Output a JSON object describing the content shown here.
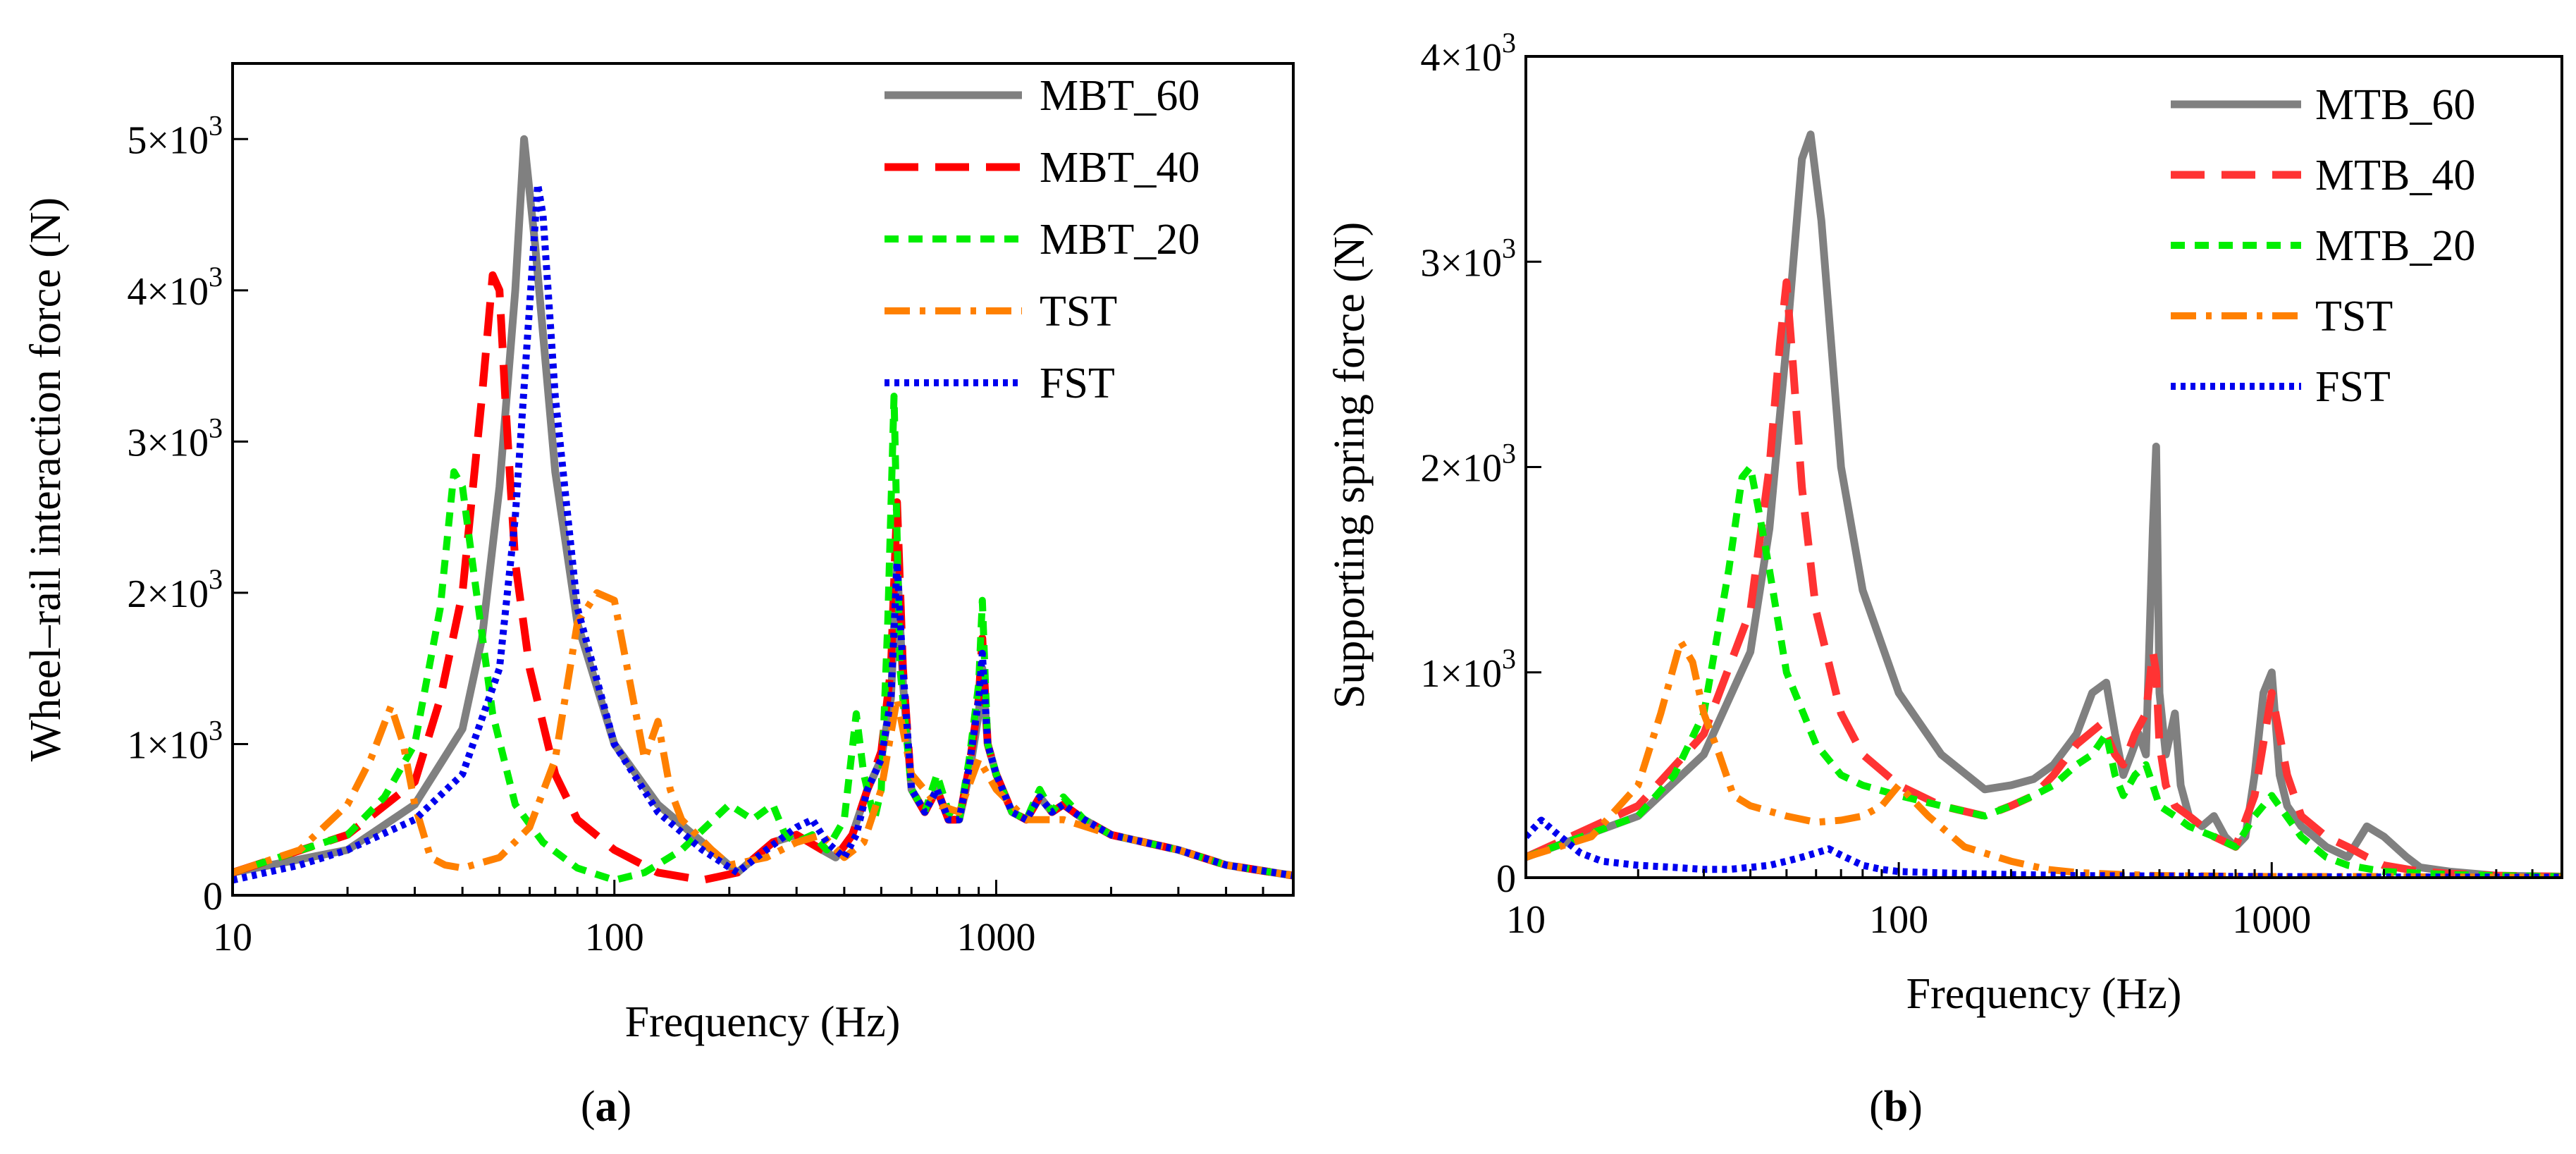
{
  "chart_data": [
    {
      "type": "line",
      "panel_label": "a",
      "xlabel": "Frequency (Hz)",
      "ylabel": "Wheel–rail interaction force (N)",
      "xscale": "log",
      "xlim": [
        10,
        6000
      ],
      "ylim": [
        0,
        5500
      ],
      "xticks": [
        {
          "value": 10,
          "label": "10"
        },
        {
          "value": 100,
          "label": "100"
        },
        {
          "value": 1000,
          "label": "1000"
        }
      ],
      "yticks": [
        {
          "value": 0,
          "label": "0"
        },
        {
          "value": 1000,
          "label": "1×10",
          "exp": "3"
        },
        {
          "value": 2000,
          "label": "2×10",
          "exp": "3"
        },
        {
          "value": 3000,
          "label": "3×10",
          "exp": "3"
        },
        {
          "value": 4000,
          "label": "4×10",
          "exp": "3"
        },
        {
          "value": 5000,
          "label": "5×10",
          "exp": "3"
        }
      ],
      "legend_position": "top-right",
      "series": [
        {
          "name": "MBT_60",
          "color": "#808080",
          "style": "solid",
          "x": [
            10,
            20,
            30,
            40,
            45,
            50,
            55,
            58,
            62,
            70,
            80,
            100,
            130,
            170,
            210,
            260,
            300,
            350,
            380,
            420,
            460,
            500,
            530,
            550,
            570,
            600,
            650,
            700,
            750,
            800,
            850,
            900,
            920,
            950,
            1000,
            1100,
            1200,
            1300,
            1400,
            1500,
            1700,
            2000,
            3000,
            4000,
            6000
          ],
          "y": [
            150,
            300,
            600,
            1100,
            1700,
            2700,
            4000,
            5000,
            4300,
            2800,
            1800,
            1000,
            600,
            350,
            150,
            350,
            400,
            300,
            250,
            400,
            700,
            900,
            1300,
            2200,
            1400,
            700,
            550,
            700,
            500,
            500,
            800,
            1200,
            1500,
            1000,
            800,
            550,
            500,
            650,
            550,
            600,
            500,
            400,
            300,
            200,
            130
          ]
        },
        {
          "name": "MBT_40",
          "color": "#ff0000",
          "style": "dash",
          "x": [
            10,
            20,
            30,
            35,
            40,
            45,
            48,
            50,
            52,
            55,
            60,
            70,
            80,
            100,
            130,
            170,
            210,
            260,
            300,
            350,
            380,
            420,
            460,
            500,
            530,
            550,
            570,
            600,
            650,
            700,
            750,
            800,
            850,
            900,
            920,
            950,
            1000,
            1100,
            1200,
            1300,
            1400,
            1500,
            1700,
            2000,
            3000,
            4000,
            6000
          ],
          "y": [
            150,
            400,
            750,
            1300,
            2000,
            3300,
            4100,
            4000,
            3200,
            2200,
            1500,
            800,
            500,
            300,
            150,
            100,
            150,
            350,
            400,
            300,
            250,
            400,
            700,
            950,
            1500,
            2600,
            1500,
            700,
            550,
            700,
            500,
            500,
            850,
            1300,
            1700,
            1000,
            800,
            550,
            500,
            650,
            550,
            600,
            500,
            400,
            300,
            200,
            130
          ]
        },
        {
          "name": "MBT_20",
          "color": "#00ee00",
          "style": "short-dash",
          "x": [
            10,
            20,
            25,
            30,
            35,
            38,
            40,
            43,
            48,
            55,
            65,
            80,
            100,
            120,
            150,
            200,
            230,
            260,
            280,
            300,
            330,
            360,
            400,
            430,
            450,
            480,
            500,
            520,
            540,
            560,
            600,
            650,
            700,
            750,
            800,
            850,
            900,
            920,
            950,
            1000,
            1100,
            1200,
            1300,
            1400,
            1500,
            1700,
            2000,
            3000,
            4000,
            6000
          ],
          "y": [
            150,
            400,
            650,
            1000,
            1900,
            2800,
            2700,
            2100,
            1200,
            600,
            350,
            180,
            100,
            150,
            300,
            600,
            500,
            600,
            400,
            350,
            400,
            300,
            500,
            1200,
            800,
            500,
            700,
            1800,
            3300,
            1500,
            700,
            550,
            800,
            550,
            500,
            900,
            1400,
            1950,
            1000,
            800,
            550,
            500,
            700,
            550,
            650,
            500,
            400,
            300,
            200,
            130
          ]
        },
        {
          "name": "TST",
          "color": "#ff8000",
          "style": "dash-dot",
          "x": [
            10,
            15,
            20,
            23,
            26,
            28,
            30,
            33,
            36,
            40,
            50,
            60,
            70,
            80,
            90,
            100,
            110,
            120,
            130,
            140,
            150,
            180,
            200,
            250,
            300,
            350,
            400,
            450,
            500,
            550,
            600,
            700,
            800,
            900,
            1000,
            1200,
            1500,
            2000,
            3000,
            4000,
            6000
          ],
          "y": [
            150,
            300,
            600,
            900,
            1250,
            1000,
            600,
            250,
            200,
            180,
            250,
            450,
            900,
            1800,
            2000,
            1950,
            1400,
            900,
            1150,
            700,
            500,
            300,
            200,
            250,
            350,
            400,
            250,
            350,
            700,
            1300,
            800,
            600,
            550,
            900,
            700,
            500,
            500,
            400,
            300,
            200,
            130
          ]
        },
        {
          "name": "FST",
          "color": "#0000ee",
          "style": "dot",
          "x": [
            10,
            15,
            20,
            30,
            40,
            50,
            55,
            60,
            63,
            65,
            70,
            80,
            100,
            130,
            170,
            210,
            250,
            300,
            330,
            360,
            400,
            430,
            460,
            500,
            530,
            550,
            570,
            600,
            650,
            700,
            750,
            800,
            850,
            900,
            920,
            950,
            1000,
            1100,
            1200,
            1300,
            1400,
            1500,
            1700,
            2000,
            3000,
            4000,
            6000
          ],
          "y": [
            100,
            200,
            300,
            500,
            800,
            1500,
            2500,
            3900,
            4700,
            4500,
            3300,
            1900,
            1000,
            550,
            300,
            150,
            300,
            450,
            500,
            350,
            250,
            400,
            700,
            900,
            1300,
            2200,
            1500,
            700,
            550,
            700,
            500,
            500,
            850,
            1300,
            1600,
            1000,
            800,
            550,
            500,
            650,
            550,
            600,
            500,
            400,
            300,
            200,
            130
          ]
        }
      ]
    },
    {
      "type": "line",
      "panel_label": "b",
      "xlabel": "Frequency (Hz)",
      "ylabel": "Supporting spring force (N)",
      "xscale": "log",
      "xlim": [
        10,
        6000
      ],
      "ylim": [
        0,
        4000
      ],
      "xticks": [
        {
          "value": 10,
          "label": "10"
        },
        {
          "value": 100,
          "label": "100"
        },
        {
          "value": 1000,
          "label": "1000"
        }
      ],
      "yticks": [
        {
          "value": 0,
          "label": "0"
        },
        {
          "value": 1000,
          "label": "1×10",
          "exp": "3"
        },
        {
          "value": 2000,
          "label": "2×10",
          "exp": "3"
        },
        {
          "value": 3000,
          "label": "3×10",
          "exp": "3"
        },
        {
          "value": 4000,
          "label": "4×10",
          "exp": "3"
        }
      ],
      "legend_position": "top-right",
      "series": [
        {
          "name": "MTB_60",
          "color": "#808080",
          "style": "solid",
          "x": [
            10,
            20,
            30,
            40,
            45,
            50,
            55,
            58,
            62,
            70,
            80,
            100,
            130,
            170,
            200,
            230,
            260,
            300,
            330,
            360,
            380,
            400,
            420,
            440,
            460,
            480,
            490,
            500,
            520,
            550,
            570,
            600,
            650,
            700,
            750,
            800,
            850,
            900,
            950,
            1000,
            1020,
            1050,
            1100,
            1200,
            1300,
            1400,
            1600,
            1800,
            2000,
            2300,
            2500,
            3000,
            4000,
            6000
          ],
          "y": [
            100,
            300,
            600,
            1100,
            1700,
            2600,
            3500,
            3620,
            3200,
            2000,
            1400,
            900,
            600,
            430,
            450,
            480,
            550,
            700,
            900,
            950,
            700,
            500,
            600,
            700,
            600,
            1700,
            2100,
            900,
            600,
            800,
            450,
            300,
            250,
            300,
            200,
            150,
            200,
            500,
            900,
            1000,
            800,
            500,
            350,
            250,
            200,
            150,
            100,
            250,
            200,
            100,
            50,
            30,
            10,
            5
          ]
        },
        {
          "name": "MTB_40",
          "color": "#ff3333",
          "style": "dash",
          "x": [
            10,
            20,
            30,
            40,
            45,
            48,
            50,
            52,
            55,
            60,
            70,
            80,
            100,
            130,
            170,
            200,
            230,
            260,
            300,
            350,
            380,
            400,
            430,
            460,
            480,
            490,
            500,
            520,
            550,
            600,
            650,
            700,
            800,
            900,
            1000,
            1100,
            1200,
            1400,
            1600,
            1800,
            2000,
            2500,
            3000,
            4000,
            6000
          ],
          "y": [
            100,
            350,
            700,
            1300,
            2000,
            2600,
            2900,
            2500,
            1900,
            1300,
            800,
            600,
            450,
            350,
            300,
            350,
            400,
            500,
            650,
            750,
            600,
            550,
            700,
            800,
            1100,
            1000,
            650,
            450,
            350,
            300,
            250,
            200,
            150,
            400,
            900,
            500,
            300,
            200,
            150,
            100,
            60,
            30,
            20,
            10,
            5
          ]
        },
        {
          "name": "MTB_20",
          "color": "#00ee00",
          "style": "short-dash",
          "x": [
            10,
            20,
            25,
            30,
            35,
            38,
            40,
            42,
            45,
            50,
            60,
            70,
            80,
            100,
            130,
            170,
            200,
            230,
            260,
            300,
            330,
            360,
            380,
            400,
            430,
            460,
            480,
            500,
            550,
            600,
            700,
            800,
            900,
            1000,
            1200,
            1400,
            1600,
            2000,
            3000,
            4000,
            6000
          ],
          "y": [
            100,
            300,
            500,
            800,
            1500,
            1950,
            2000,
            1800,
            1500,
            1000,
            650,
            500,
            450,
            400,
            350,
            300,
            350,
            400,
            450,
            550,
            600,
            700,
            500,
            400,
            500,
            550,
            450,
            350,
            300,
            250,
            200,
            150,
            300,
            400,
            200,
            100,
            60,
            30,
            15,
            10,
            5
          ]
        },
        {
          "name": "TST",
          "color": "#ff8000",
          "style": "dash-dot",
          "x": [
            10,
            15,
            20,
            23,
            26,
            28,
            30,
            33,
            36,
            40,
            50,
            60,
            70,
            80,
            90,
            100,
            120,
            150,
            200,
            250,
            300,
            400,
            500,
            700,
            1000,
            2000,
            3000,
            6000
          ],
          "y": [
            100,
            200,
            450,
            800,
            1150,
            1050,
            800,
            600,
            400,
            350,
            300,
            270,
            280,
            300,
            350,
            450,
            300,
            150,
            80,
            40,
            25,
            15,
            10,
            8,
            5,
            5,
            3,
            2
          ]
        },
        {
          "name": "FST",
          "color": "#0000ee",
          "style": "dot",
          "x": [
            10,
            11,
            12,
            14,
            16,
            20,
            25,
            30,
            35,
            40,
            45,
            50,
            55,
            60,
            65,
            70,
            80,
            90,
            100,
            120,
            150,
            200,
            300,
            500,
            1000,
            2000,
            6000
          ],
          "y": [
            200,
            280,
            220,
            120,
            80,
            60,
            50,
            40,
            40,
            50,
            60,
            80,
            100,
            120,
            140,
            110,
            60,
            40,
            30,
            25,
            20,
            15,
            10,
            8,
            5,
            3,
            2
          ]
        }
      ]
    }
  ]
}
